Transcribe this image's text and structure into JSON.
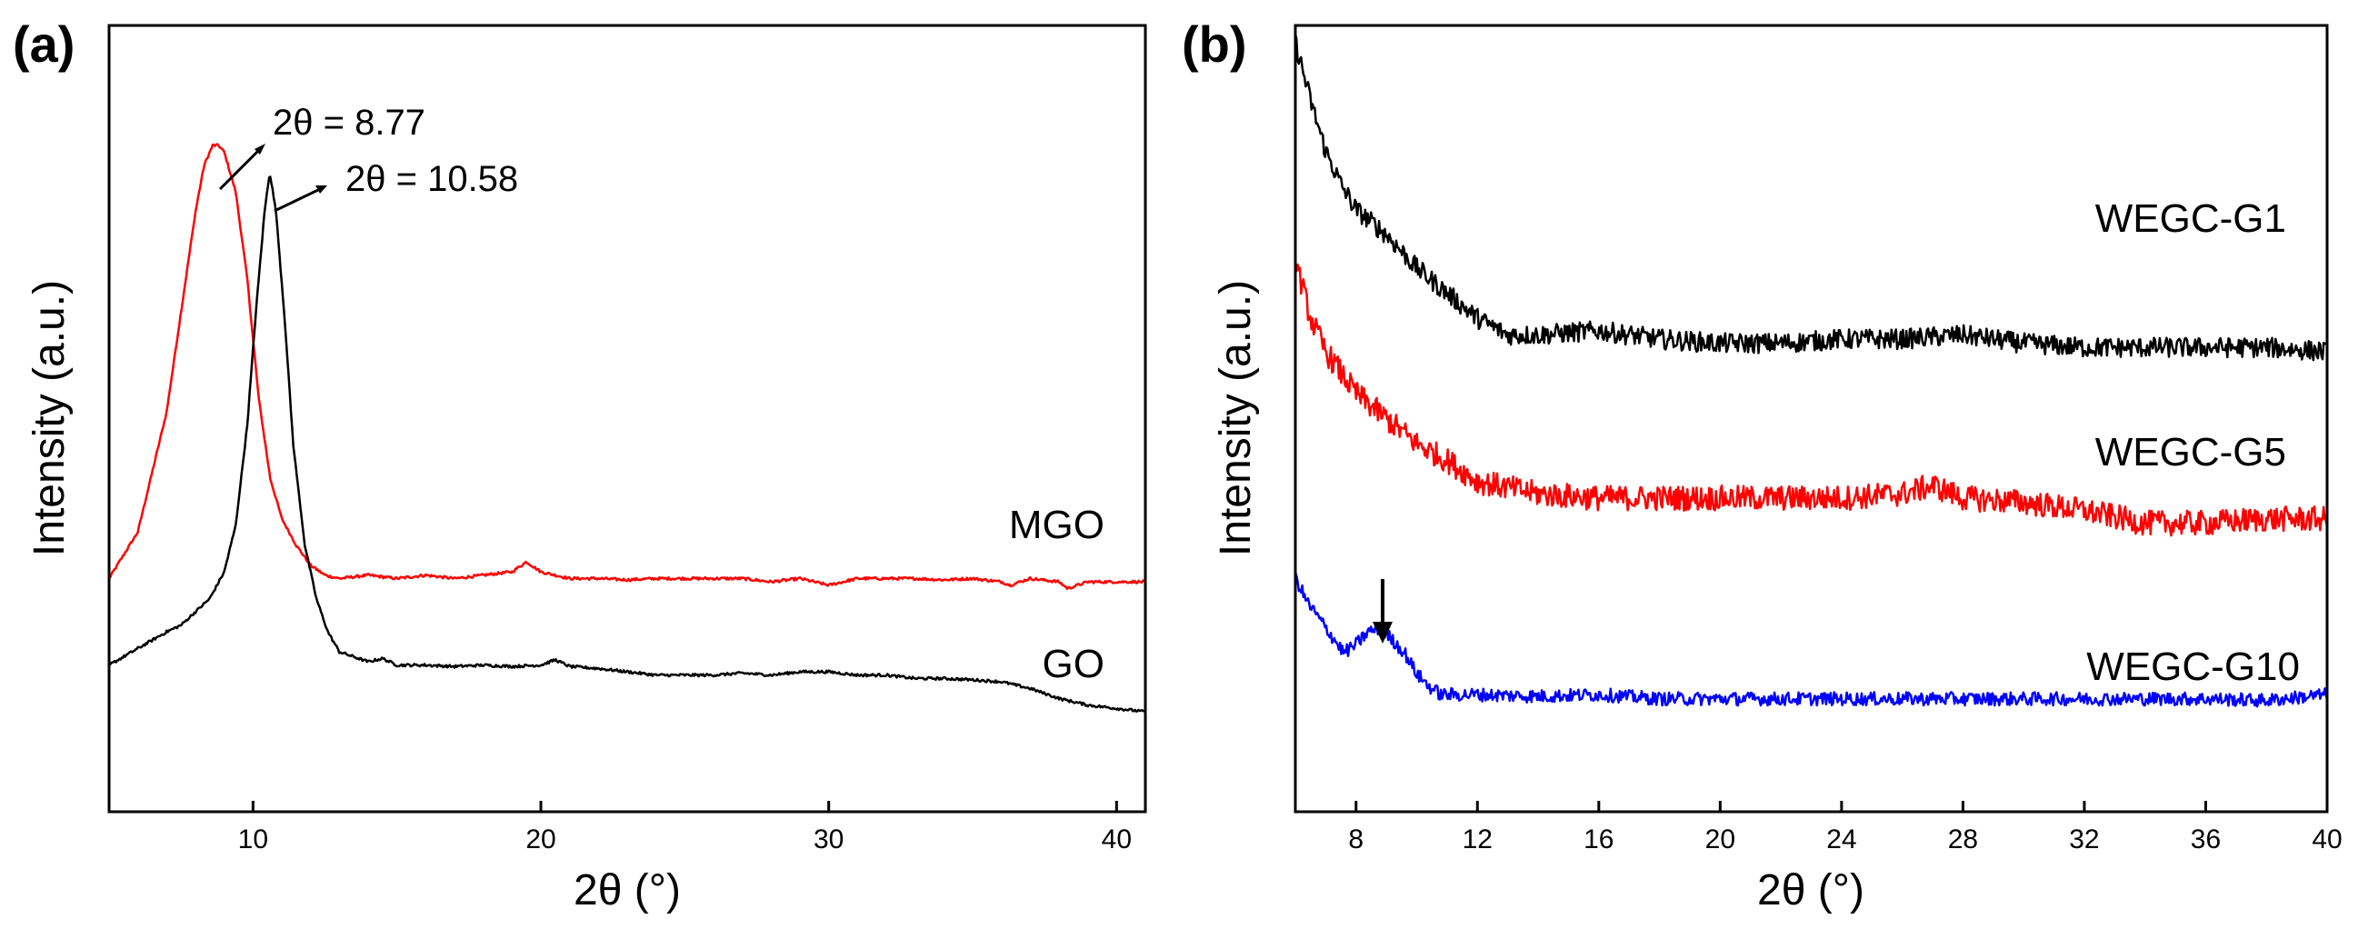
{
  "chart_data": [
    {
      "panel": "(a)",
      "type": "line",
      "xlabel": "2θ (°)",
      "ylabel": "Intensity (a.u.)",
      "xlim": [
        5,
        41
      ],
      "x_ticks": [
        "10",
        "20",
        "30",
        "40"
      ],
      "y_ticks_labeled": false,
      "series": [
        {
          "name": "MGO",
          "color": "#ff0000",
          "x": [
            5,
            6,
            7,
            7.6,
            8,
            8.3,
            8.6,
            8.8,
            9.0,
            9.4,
            9.8,
            10.2,
            10.6,
            11.0,
            11.5,
            12.0,
            12.5,
            13,
            14,
            15,
            16,
            17,
            18,
            19,
            19.5,
            20,
            21,
            22,
            23,
            24,
            25,
            26,
            27,
            28,
            29,
            30,
            31,
            32,
            33,
            34,
            35,
            36,
            36.3,
            37,
            38,
            38.3,
            39,
            40,
            41
          ],
          "values": [
            0.35,
            0.42,
            0.6,
            0.78,
            0.9,
            0.97,
            1.0,
            1.0,
            0.99,
            0.93,
            0.8,
            0.62,
            0.5,
            0.44,
            0.4,
            0.37,
            0.355,
            0.35,
            0.355,
            0.35,
            0.355,
            0.35,
            0.355,
            0.36,
            0.375,
            0.36,
            0.35,
            0.35,
            0.348,
            0.35,
            0.35,
            0.35,
            0.35,
            0.345,
            0.35,
            0.34,
            0.35,
            0.35,
            0.35,
            0.348,
            0.35,
            0.345,
            0.34,
            0.35,
            0.345,
            0.335,
            0.345,
            0.345,
            0.345
          ]
        },
        {
          "name": "GO",
          "color": "#000000",
          "x": [
            5,
            6,
            7,
            7.5,
            8,
            8.5,
            9,
            9.4,
            9.8,
            10.1,
            10.4,
            10.58,
            10.8,
            11.1,
            11.4,
            11.8,
            12.2,
            12.6,
            13,
            14,
            14.5,
            15,
            16,
            17,
            18,
            19,
            20,
            20.5,
            21,
            22,
            23,
            24,
            25,
            26,
            27,
            28,
            29,
            30,
            31,
            32,
            33,
            34,
            35,
            36,
            37,
            38,
            39,
            40,
            41
          ],
          "values": [
            0.22,
            0.245,
            0.27,
            0.28,
            0.3,
            0.32,
            0.36,
            0.43,
            0.58,
            0.75,
            0.9,
            0.96,
            0.9,
            0.74,
            0.55,
            0.4,
            0.32,
            0.27,
            0.24,
            0.225,
            0.23,
            0.22,
            0.22,
            0.218,
            0.22,
            0.218,
            0.22,
            0.228,
            0.218,
            0.215,
            0.21,
            0.205,
            0.205,
            0.205,
            0.208,
            0.205,
            0.21,
            0.21,
            0.205,
            0.205,
            0.2,
            0.2,
            0.198,
            0.195,
            0.185,
            0.17,
            0.16,
            0.155,
            0.15
          ]
        }
      ],
      "annotations": [
        {
          "text": "2θ = 8.77",
          "x": 8.77
        },
        {
          "text": "2θ = 10.58",
          "x": 10.58
        }
      ]
    },
    {
      "panel": "(b)",
      "type": "line",
      "xlabel": "2θ (°)",
      "ylabel": "Intensity (a.u.)",
      "xlim": [
        6,
        40
      ],
      "x_ticks": [
        "8",
        "12",
        "16",
        "20",
        "24",
        "28",
        "32",
        "36",
        "40"
      ],
      "y_ticks_labeled": false,
      "series": [
        {
          "name": "WEGC-G1",
          "color": "#000000",
          "noise": 0.012,
          "x": [
            6,
            6.5,
            7,
            7.5,
            8,
            9,
            10,
            11,
            12,
            13,
            14,
            16,
            18,
            20,
            22,
            24,
            26,
            28,
            30,
            32,
            34,
            36,
            38,
            40
          ],
          "values": [
            1.0,
            0.93,
            0.87,
            0.83,
            0.8,
            0.77,
            0.73,
            0.7,
            0.67,
            0.65,
            0.65,
            0.655,
            0.645,
            0.64,
            0.64,
            0.645,
            0.645,
            0.65,
            0.64,
            0.635,
            0.635,
            0.635,
            0.635,
            0.63
          ]
        },
        {
          "name": "WEGC-G5",
          "color": "#ff0000",
          "noise": 0.015,
          "x": [
            6,
            6.5,
            7,
            8,
            9,
            10,
            11,
            12,
            14,
            16,
            18,
            20,
            22,
            24,
            26,
            27,
            28,
            30,
            32,
            34,
            36,
            38,
            40
          ],
          "values": [
            0.74,
            0.67,
            0.63,
            0.58,
            0.55,
            0.52,
            0.5,
            0.475,
            0.46,
            0.455,
            0.455,
            0.455,
            0.455,
            0.455,
            0.46,
            0.47,
            0.455,
            0.45,
            0.44,
            0.425,
            0.425,
            0.43,
            0.43
          ]
        },
        {
          "name": "WEGC-G10",
          "color": "#0000ff",
          "noise": 0.008,
          "x": [
            6,
            6.4,
            6.8,
            7.2,
            7.6,
            8.0,
            8.4,
            8.8,
            9.2,
            9.6,
            10.0,
            10.4,
            10.8,
            11.5,
            12,
            14,
            16,
            18,
            20,
            22,
            24,
            26,
            28,
            30,
            32,
            34,
            36,
            38,
            40
          ],
          "values": [
            0.36,
            0.33,
            0.31,
            0.29,
            0.27,
            0.28,
            0.295,
            0.3,
            0.285,
            0.27,
            0.245,
            0.23,
            0.22,
            0.22,
            0.22,
            0.218,
            0.22,
            0.215,
            0.215,
            0.215,
            0.215,
            0.215,
            0.215,
            0.215,
            0.215,
            0.215,
            0.215,
            0.213,
            0.22
          ]
        }
      ],
      "annotations": [
        {
          "text": "",
          "arrow": "down",
          "x": 8.8
        }
      ]
    }
  ]
}
